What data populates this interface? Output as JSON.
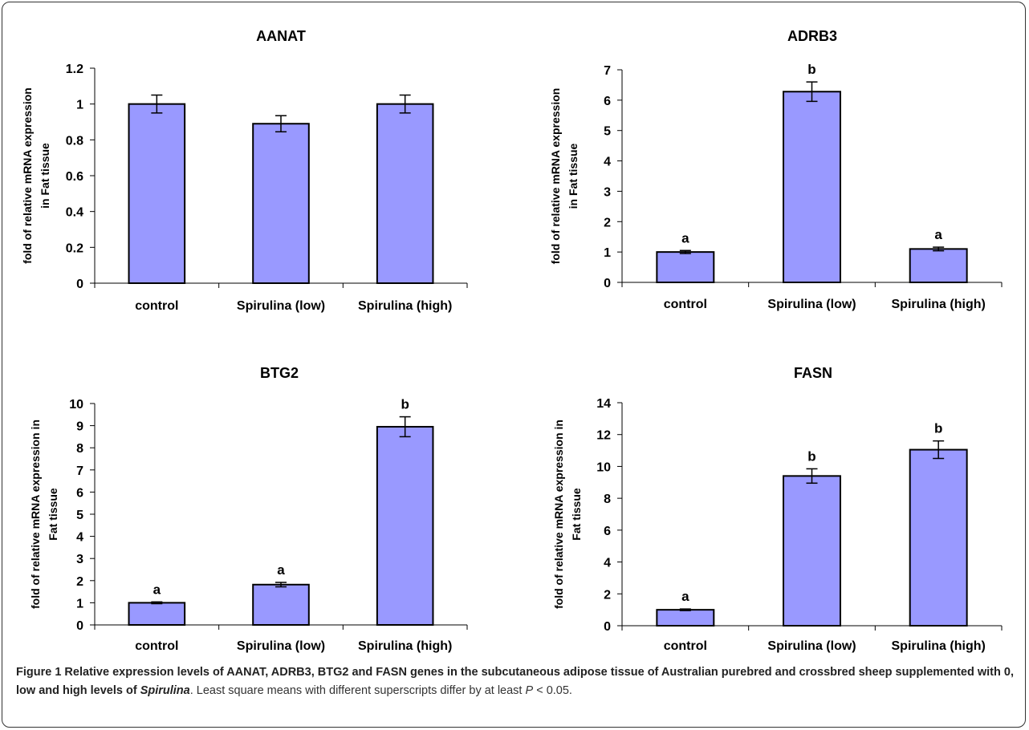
{
  "chart_data": [
    {
      "type": "bar",
      "title": "AANAT",
      "ylabel": [
        "fold of relative mRNA expression",
        "in Fat tissue"
      ],
      "xlabel": "",
      "categories": [
        "control",
        "Spirulina (low)",
        "Spirulina (high)"
      ],
      "values": [
        1.0,
        0.89,
        1.0
      ],
      "errors": [
        0.05,
        0.045,
        0.05
      ],
      "superscripts": [
        "",
        "",
        ""
      ],
      "ylim": [
        0,
        1.2
      ],
      "yticks": [
        "0",
        "0.2",
        "0.4",
        "0.6",
        "0.8",
        "1",
        "1.2"
      ],
      "bar_color": "#9999ff",
      "grid": false
    },
    {
      "type": "bar",
      "title": "ADRB3",
      "ylabel": [
        "fold of relative mRNA expression",
        "in Fat tissue"
      ],
      "xlabel": "",
      "categories": [
        "control",
        "Spirulina (low)",
        "Spirulina (high)"
      ],
      "values": [
        1.0,
        6.28,
        1.1
      ],
      "errors": [
        0.05,
        0.32,
        0.06
      ],
      "superscripts": [
        "a",
        "b",
        "a"
      ],
      "ylim": [
        0,
        7
      ],
      "yticks": [
        "0",
        "1",
        "2",
        "3",
        "4",
        "5",
        "6",
        "7"
      ],
      "bar_color": "#9999ff",
      "grid": false
    },
    {
      "type": "bar",
      "title": "BTG2",
      "ylabel": [
        "fold of relative mRNA expression in",
        "Fat tissue"
      ],
      "xlabel": "",
      "categories": [
        "control",
        "Spirulina (low)",
        "Spirulina (high)"
      ],
      "values": [
        1.0,
        1.82,
        8.95
      ],
      "errors": [
        0.04,
        0.1,
        0.45
      ],
      "superscripts": [
        "a",
        "a",
        "b"
      ],
      "ylim": [
        0,
        10
      ],
      "yticks": [
        "0",
        "1",
        "2",
        "3",
        "4",
        "5",
        "6",
        "7",
        "8",
        "9",
        "10"
      ],
      "bar_color": "#9999ff",
      "grid": false
    },
    {
      "type": "bar",
      "title": "FASN",
      "ylabel": [
        "fold of relative mRNA expression in",
        "Fat tissue"
      ],
      "xlabel": "",
      "categories": [
        "control",
        "Spirulina (low)",
        "Spirulina (high)"
      ],
      "values": [
        1.0,
        9.4,
        11.05
      ],
      "errors": [
        0.05,
        0.45,
        0.55
      ],
      "superscripts": [
        "a",
        "b",
        "b"
      ],
      "ylim": [
        0,
        14
      ],
      "yticks": [
        "0",
        "2",
        "4",
        "6",
        "8",
        "10",
        "12",
        "14"
      ],
      "bar_color": "#9999ff",
      "grid": false
    }
  ],
  "caption": {
    "label": "Figure 1",
    "bold_text_1": " Relative expression levels of AANAT, ADRB3, BTG2 and FASN genes in the subcutaneous adipose tissue of Australian purebred and crossbred sheep supplemented with 0, low and high levels of ",
    "bold_italic": "Spirulina",
    "text_2": ". Least square means with different superscripts differ by at least ",
    "italic_p": "P",
    "text_3": " < 0.05."
  }
}
